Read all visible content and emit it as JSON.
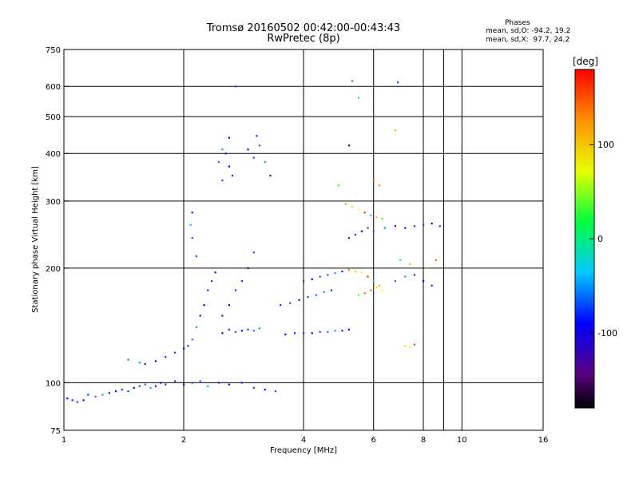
{
  "header": {
    "title_line1": "Tromsø 20160502 00:42:00-00:43:43",
    "title_line2": "RwPretec (8p)",
    "stats_heading": "Phases",
    "stats_o": "mean, sd,O: -94.2, 19.2",
    "stats_x": "mean, sd,X:  97.7, 24.2"
  },
  "colorbar": {
    "title": "[deg]",
    "tick_labels": [
      "100",
      "0",
      "-100"
    ],
    "tick_values": [
      100,
      0,
      -100
    ],
    "range": [
      -180,
      180
    ]
  },
  "chart_data": {
    "type": "scatter",
    "xlabel": "Frequency [MHz]",
    "ylabel": "Stationary phase Virtual Height [km]",
    "x_scale": "log",
    "y_scale": "log",
    "xlim": [
      1,
      16
    ],
    "ylim": [
      75,
      750
    ],
    "x_ticks": [
      1,
      2,
      4,
      6,
      8,
      10,
      16
    ],
    "x_tick_labels": [
      "1",
      "2",
      "4",
      "6",
      "8",
      "10",
      "16"
    ],
    "y_ticks": [
      75,
      100,
      200,
      300,
      400,
      500,
      600,
      750
    ],
    "y_tick_labels": [
      "75",
      "100",
      "200",
      "300",
      "400",
      "500",
      "600",
      "750"
    ],
    "grid": true,
    "color_variable": "phase [deg]",
    "series": [
      {
        "color_group": "O-mode",
        "points": [
          [
            1.02,
            91
          ],
          [
            1.05,
            90
          ],
          [
            1.08,
            89
          ],
          [
            1.12,
            90
          ],
          [
            1.15,
            93
          ],
          [
            1.2,
            92
          ],
          [
            1.25,
            93
          ],
          [
            1.3,
            94
          ],
          [
            1.35,
            95
          ],
          [
            1.4,
            96
          ],
          [
            1.45,
            95
          ],
          [
            1.5,
            97
          ],
          [
            1.55,
            98
          ],
          [
            1.6,
            99
          ],
          [
            1.65,
            97
          ],
          [
            1.7,
            98
          ],
          [
            1.75,
            100
          ],
          [
            1.8,
            99
          ],
          [
            1.9,
            101
          ],
          [
            2.0,
            99
          ],
          [
            2.1,
            100
          ],
          [
            2.2,
            101
          ],
          [
            2.3,
            98
          ],
          [
            2.45,
            100
          ],
          [
            2.6,
            99
          ],
          [
            2.8,
            100
          ],
          [
            3.0,
            97
          ],
          [
            3.2,
            96
          ],
          [
            3.4,
            95
          ],
          [
            1.45,
            115
          ],
          [
            1.55,
            113
          ],
          [
            1.6,
            112
          ],
          [
            1.7,
            114
          ],
          [
            1.8,
            117
          ],
          [
            1.9,
            120
          ],
          [
            2.0,
            123
          ],
          [
            2.05,
            125
          ],
          [
            2.1,
            130
          ],
          [
            2.15,
            140
          ],
          [
            2.2,
            150
          ],
          [
            2.25,
            160
          ],
          [
            2.3,
            175
          ],
          [
            2.35,
            185
          ],
          [
            2.4,
            195
          ],
          [
            2.15,
            215
          ],
          [
            2.1,
            240
          ],
          [
            2.08,
            260
          ],
          [
            2.1,
            280
          ],
          [
            2.5,
            135
          ],
          [
            2.6,
            138
          ],
          [
            2.7,
            136
          ],
          [
            2.8,
            137
          ],
          [
            2.9,
            138
          ],
          [
            3.0,
            137
          ],
          [
            3.1,
            139
          ],
          [
            2.5,
            150
          ],
          [
            2.6,
            160
          ],
          [
            2.7,
            175
          ],
          [
            2.8,
            185
          ],
          [
            2.9,
            200
          ],
          [
            3.0,
            220
          ],
          [
            2.45,
            380
          ],
          [
            2.5,
            410
          ],
          [
            2.55,
            400
          ],
          [
            2.6,
            370
          ],
          [
            2.65,
            350
          ],
          [
            2.5,
            340
          ],
          [
            2.6,
            440
          ],
          [
            3.0,
            390
          ],
          [
            3.1,
            420
          ],
          [
            3.2,
            380
          ],
          [
            3.3,
            350
          ],
          [
            2.9,
            410
          ],
          [
            3.05,
            445
          ],
          [
            4.0,
            185
          ],
          [
            4.2,
            187
          ],
          [
            4.4,
            190
          ],
          [
            4.6,
            192
          ],
          [
            4.8,
            194
          ],
          [
            5.0,
            196
          ],
          [
            5.2,
            198
          ],
          [
            3.5,
            160
          ],
          [
            3.7,
            162
          ],
          [
            3.9,
            165
          ],
          [
            4.1,
            168
          ],
          [
            4.3,
            170
          ],
          [
            4.5,
            173
          ],
          [
            4.7,
            175
          ],
          [
            3.6,
            134
          ],
          [
            3.8,
            135
          ],
          [
            4.0,
            135
          ],
          [
            4.2,
            135
          ],
          [
            4.4,
            136
          ],
          [
            4.6,
            136
          ],
          [
            4.8,
            137
          ],
          [
            5.0,
            137
          ],
          [
            5.2,
            138
          ],
          [
            5.2,
            240
          ],
          [
            5.4,
            245
          ],
          [
            5.6,
            250
          ],
          [
            5.8,
            255
          ],
          [
            6.0,
            250
          ],
          [
            6.4,
            255
          ],
          [
            6.8,
            258
          ],
          [
            7.2,
            255
          ],
          [
            7.6,
            258
          ],
          [
            8.0,
            260
          ],
          [
            8.4,
            262
          ],
          [
            8.8,
            258
          ],
          [
            6.8,
            185
          ],
          [
            7.2,
            190
          ],
          [
            7.6,
            192
          ],
          [
            8.0,
            185
          ],
          [
            8.4,
            180
          ],
          [
            2.7,
            600
          ],
          [
            5.2,
            420
          ],
          [
            6.9,
            615
          ]
        ]
      },
      {
        "color_group": "X-mode",
        "points": [
          [
            5.1,
            295
          ],
          [
            5.3,
            290
          ],
          [
            5.5,
            285
          ],
          [
            5.7,
            280
          ],
          [
            5.9,
            275
          ],
          [
            6.1,
            272
          ],
          [
            6.3,
            270
          ],
          [
            5.0,
            200
          ],
          [
            5.2,
            198
          ],
          [
            5.4,
            196
          ],
          [
            5.6,
            195
          ],
          [
            5.8,
            190
          ],
          [
            6.0,
            185
          ],
          [
            6.2,
            180
          ],
          [
            5.5,
            170
          ],
          [
            5.7,
            172
          ],
          [
            5.9,
            175
          ],
          [
            6.1,
            178
          ],
          [
            6.3,
            175
          ],
          [
            5.3,
            620
          ],
          [
            5.5,
            560
          ],
          [
            6.8,
            460
          ],
          [
            4.9,
            330
          ],
          [
            6.0,
            340
          ],
          [
            6.2,
            330
          ],
          [
            7.2,
            125
          ],
          [
            7.4,
            124
          ],
          [
            7.6,
            126
          ],
          [
            7.0,
            210
          ],
          [
            7.4,
            205
          ],
          [
            8.2,
            200
          ],
          [
            8.6,
            210
          ]
        ]
      }
    ]
  }
}
